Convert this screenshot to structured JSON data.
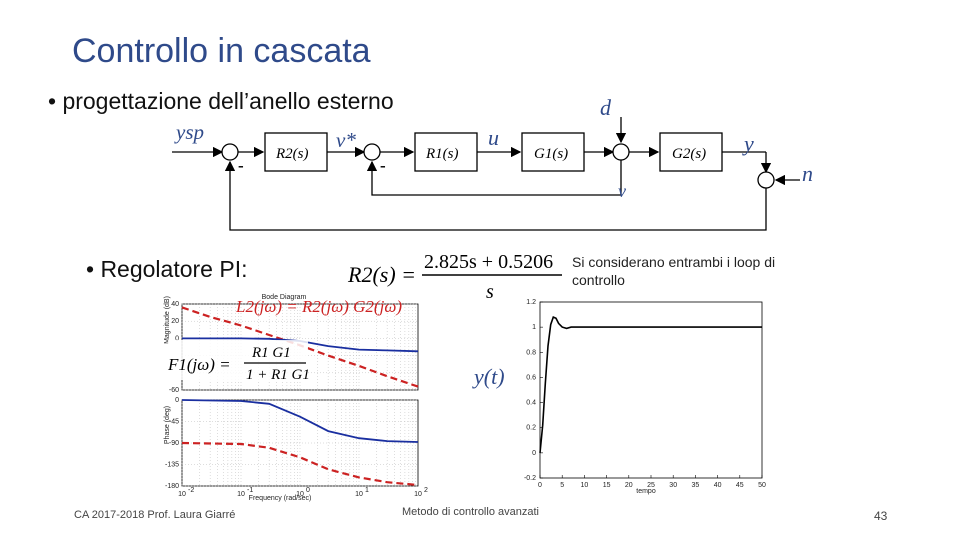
{
  "slide": {
    "title": "Controllo in cascata",
    "bullet1": "• progettazione dell’anello esterno",
    "bullet2": "• Regolatore PI:",
    "note": "Si considerano entrambi i loop di controllo",
    "footer_left": "CA 2017-2018 Prof. Laura Giarré",
    "footer_center": "Metodo di controllo avanzati",
    "page_number": "43"
  },
  "block_diagram": {
    "reference": "ysp",
    "inner_reference": "v*",
    "minus_sign": "-",
    "controller_outer": "R2(s)",
    "controller_inner": "R1(s)",
    "control_signal": "u",
    "plant1": "G1(s)",
    "plant2": "G2(s)",
    "disturbance": "d",
    "output": "y",
    "noise": "n",
    "inner_signal": "v"
  },
  "formulas": {
    "pi_lhs": "R2(s) =",
    "pi_numerator": "2.825s + 0.5206",
    "pi_denominator": "s",
    "loop_gain": "L2(jω) = R2(jω) G2(jω)",
    "f1_lhs": "F1(jω) =",
    "f1_num": "R1 G1",
    "f1_den": "1 + R1 G1",
    "step_label": "y(t)"
  },
  "colors": {
    "title": "#2f4a8a",
    "blue_curve": "#1a2fa0",
    "red_curve": "#cc2222",
    "step_curve": "#000000"
  },
  "chart_data": [
    {
      "type": "line",
      "title": "Bode Diagram",
      "xlabel": "Frequency (rad/sec)",
      "ylabel_top": "Magnitude (dB)",
      "ylabel_bottom": "Phase (deg)",
      "x_scale": "log",
      "x_ticks": [
        0.01,
        0.1,
        1,
        10,
        100
      ],
      "x_tick_labels": [
        "10",
        "10",
        "10",
        "10",
        "10"
      ],
      "x_tick_exponents": [
        "-2",
        "-1",
        "0",
        "1",
        "2"
      ],
      "mag_yticks": [
        40,
        20,
        0,
        -20,
        -40,
        -60
      ],
      "mag_ytick_labels": [
        "40",
        "20",
        "0",
        "",
        "",
        "-60"
      ],
      "phase_yticks": [
        0,
        -45,
        -90,
        -135,
        -180
      ],
      "phase_ytick_labels": [
        "0",
        "-45",
        "-90",
        "-135",
        "-180"
      ],
      "grid": true,
      "series": [
        {
          "name": "L2 magnitude",
          "panel": "magnitude",
          "style": "dashed",
          "color": "#cc2222",
          "x": [
            0.01,
            0.03,
            0.1,
            0.3,
            1,
            3,
            10,
            30,
            100
          ],
          "y": [
            36,
            25,
            15,
            4,
            -8,
            -20,
            -32,
            -44,
            -56
          ]
        },
        {
          "name": "F1 magnitude",
          "panel": "magnitude",
          "style": "solid",
          "color": "#1a2fa0",
          "x": [
            0.01,
            0.1,
            0.3,
            1,
            3,
            10,
            30,
            100
          ],
          "y": [
            0,
            0,
            -0.5,
            -3,
            -9,
            -13,
            -14,
            -15
          ]
        },
        {
          "name": "F1 phase",
          "panel": "phase",
          "style": "solid",
          "color": "#1a2fa0",
          "x": [
            0.01,
            0.1,
            0.3,
            1,
            3,
            10,
            30,
            100
          ],
          "y": [
            0,
            -2,
            -8,
            -35,
            -65,
            -80,
            -86,
            -88
          ]
        },
        {
          "name": "L2 phase",
          "panel": "phase",
          "style": "dashed",
          "color": "#cc2222",
          "x": [
            0.01,
            0.1,
            0.3,
            1,
            3,
            10,
            30,
            100
          ],
          "y": [
            -90,
            -92,
            -100,
            -120,
            -145,
            -162,
            -172,
            -178
          ]
        }
      ]
    },
    {
      "type": "line",
      "title": "",
      "xlabel": "tempo",
      "ylabel": "",
      "xlim": [
        0,
        50
      ],
      "ylim": [
        -0.2,
        1.2
      ],
      "x_ticks": [
        0,
        5,
        10,
        15,
        20,
        25,
        30,
        35,
        40,
        45,
        50
      ],
      "y_ticks": [
        -0.2,
        0,
        0.2,
        0.4,
        0.6,
        0.8,
        1,
        1.2
      ],
      "y_tick_labels": [
        "-0.2",
        "0",
        "0.2",
        "0.4",
        "0.6",
        "0.8",
        "1",
        "1.2"
      ],
      "grid": false,
      "series": [
        {
          "name": "step response",
          "color": "#000000",
          "x": [
            0,
            0.6,
            1.2,
            1.8,
            2.4,
            3.0,
            3.6,
            4.2,
            5,
            6,
            7,
            8,
            10,
            15,
            20,
            30,
            40,
            50
          ],
          "y": [
            0,
            0.22,
            0.55,
            0.85,
            1.02,
            1.08,
            1.07,
            1.03,
            1.0,
            0.99,
            1.0,
            1.0,
            1.0,
            1.0,
            1.0,
            1.0,
            1.0,
            1.0
          ]
        }
      ]
    }
  ]
}
